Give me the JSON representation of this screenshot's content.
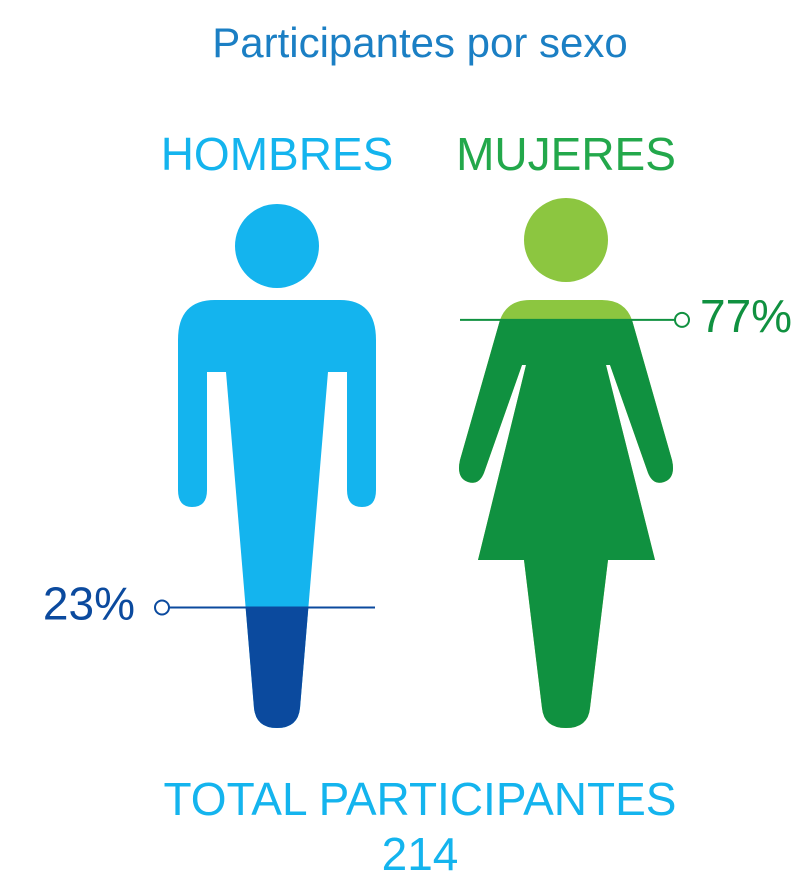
{
  "chart_data": {
    "type": "pictorial",
    "title": "Participantes por sexo",
    "categories": [
      "HOMBRES",
      "MUJERES"
    ],
    "values": [
      23,
      77
    ],
    "value_labels": [
      "23%",
      "77%"
    ],
    "colors": [
      "#14b4ee",
      "#8cc640"
    ],
    "fill_colors": [
      "#0b4a9e",
      "#109140"
    ],
    "label_colors": [
      "#14b4ee",
      "#23a84b"
    ],
    "total_label": "TOTAL PARTICIPANTES",
    "total": 214
  }
}
